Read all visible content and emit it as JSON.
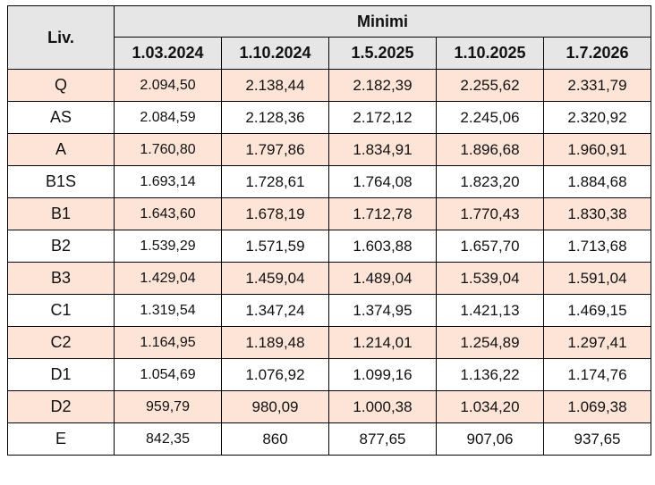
{
  "table": {
    "header_level": "Liv.",
    "header_group": "Minimi",
    "dates": [
      "1.03.2024",
      "1.10.2024",
      "1.5.2025",
      "1.10.2025",
      "1.7.2026"
    ],
    "rows": [
      {
        "level": "Q",
        "values": [
          "2.094,50",
          "2.138,44",
          "2.182,39",
          "2.255,62",
          "2.331,79"
        ]
      },
      {
        "level": "AS",
        "values": [
          "2.084,59",
          "2.128,36",
          "2.172,12",
          "2.245,06",
          "2.320,92"
        ]
      },
      {
        "level": "A",
        "values": [
          "1.760,80",
          "1.797,86",
          "1.834,91",
          "1.896,68",
          "1.960,91"
        ]
      },
      {
        "level": "B1S",
        "values": [
          "1.693,14",
          "1.728,61",
          "1.764,08",
          "1.823,20",
          "1.884,68"
        ]
      },
      {
        "level": "B1",
        "values": [
          "1.643,60",
          "1.678,19",
          "1.712,78",
          "1.770,43",
          "1.830,38"
        ]
      },
      {
        "level": "B2",
        "values": [
          "1.539,29",
          "1.571,59",
          "1.603,88",
          "1.657,70",
          "1.713,68"
        ]
      },
      {
        "level": "B3",
        "values": [
          "1.429,04",
          "1.459,04",
          "1.489,04",
          "1.539,04",
          "1.591,04"
        ]
      },
      {
        "level": "C1",
        "values": [
          "1.319,54",
          "1.347,24",
          "1.374,95",
          "1.421,13",
          "1.469,15"
        ]
      },
      {
        "level": "C2",
        "values": [
          "1.164,95",
          "1.189,48",
          "1.214,01",
          "1.254,89",
          "1.297,41"
        ]
      },
      {
        "level": "D1",
        "values": [
          "1.054,69",
          "1.076,92",
          "1.099,16",
          "1.136,22",
          "1.174,76"
        ]
      },
      {
        "level": "D2",
        "values": [
          "959,79",
          "980,09",
          "1.000,38",
          "1.034,20",
          "1.069,38"
        ]
      },
      {
        "level": "E",
        "values": [
          "842,35",
          "860",
          "877,65",
          "907,06",
          "937,65"
        ]
      }
    ]
  }
}
